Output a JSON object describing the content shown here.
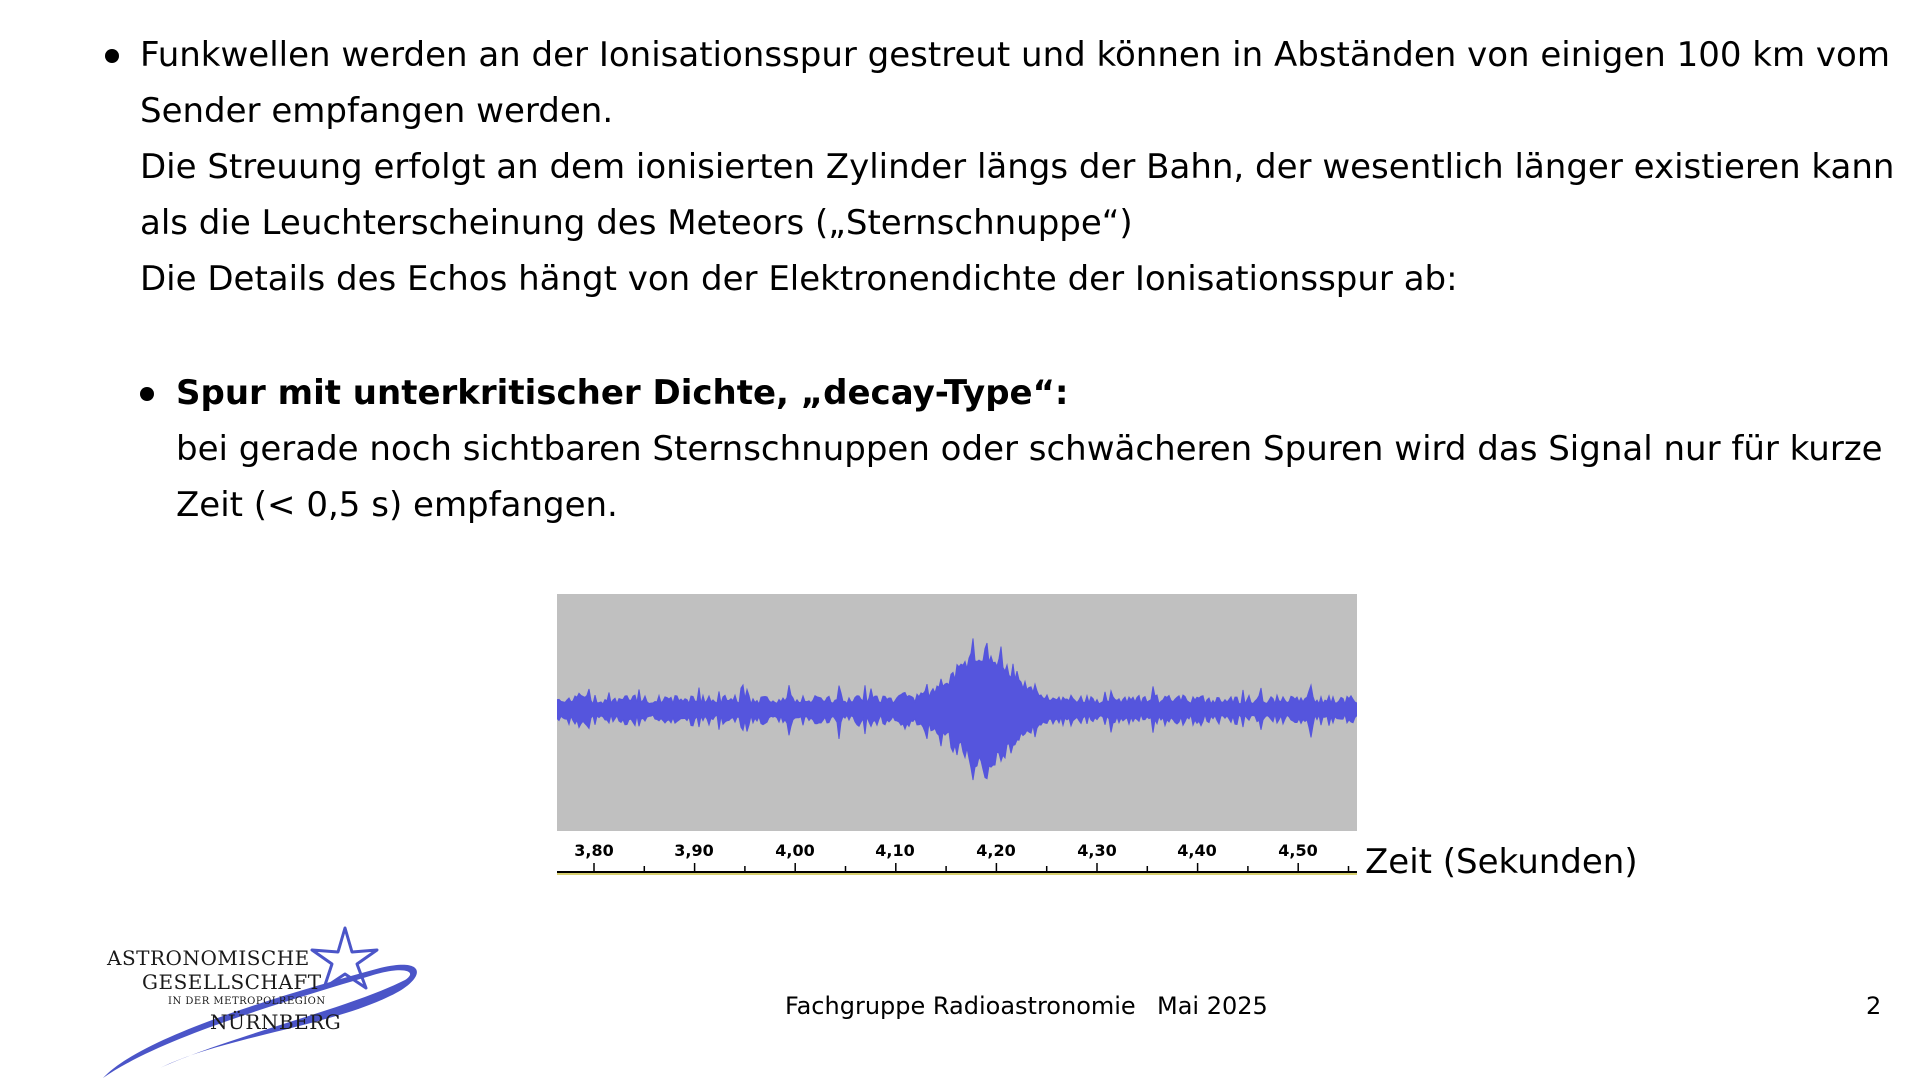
{
  "main_bullet": {
    "lines": [
      "Funkwellen werden an der Ionisationsspur gestreut und können in Abständen von einigen 100 km vom",
      "Sender empfangen werden.",
      "Die Streuung erfolgt an dem ionisierten Zylinder längs der Bahn, der wesentlich länger existieren kann",
      "als die Leuchterscheinung des Meteors („Sternschnuppe“)",
      "Die Details des Echos hängt von der Elektronendichte der Ionisationsspur ab:"
    ]
  },
  "sub_bullet": {
    "heading": "Spur mit unterkritischer Dichte, „decay-Type“:",
    "lines": [
      "bei gerade noch sichtbaren Sternschnuppen oder schwächeren Spuren wird das Signal nur für kurze",
      "Zeit (< 0,5 s) empfangen."
    ]
  },
  "waveform": {
    "wave_color": "#5555dd",
    "background_color": "#c0c0c0",
    "tick_labels": [
      "3,80",
      "3,90",
      "4,00",
      "4,10",
      "4,20",
      "4,30",
      "4,40",
      "4,50"
    ],
    "axis_caption": "Zeit (Sekunden)"
  },
  "logo": {
    "line1": "ASTRONOMISCHE",
    "line2": "GESELLSCHAFT",
    "line3": "IN DER METROPOLREGION",
    "line4": "NÜRNBERG",
    "color": "#4b55c8"
  },
  "footer": {
    "group": "Fachgruppe Radioastronomie",
    "date": "Mai 2025",
    "page_number": "2"
  }
}
